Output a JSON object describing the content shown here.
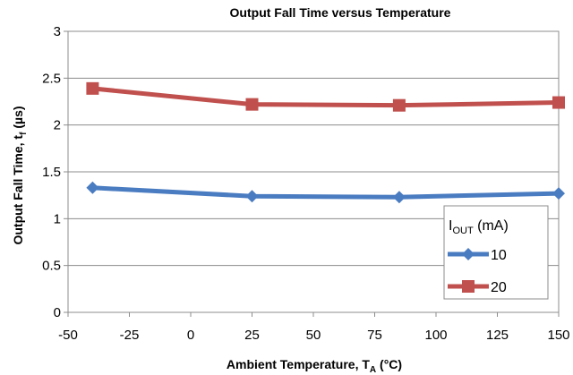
{
  "chart_data": {
    "type": "line",
    "title": "Output Fall Time versus Temperature",
    "xlabel": {
      "main": "Ambient Temperature, T",
      "sub": "A",
      "tail": " (°C)"
    },
    "ylabel": {
      "main": "Output Fall Time, t",
      "sub": "f",
      "tail": " (µs)"
    },
    "xlim": [
      -50,
      150
    ],
    "ylim": [
      0,
      3
    ],
    "xticks": [
      -50,
      -25,
      0,
      25,
      50,
      75,
      100,
      125,
      150
    ],
    "xtick_labels": [
      "-50",
      "-25",
      "0",
      "25",
      "50",
      "75",
      "100",
      "125",
      "150"
    ],
    "yticks": [
      0,
      0.5,
      1,
      1.5,
      2,
      2.5,
      3
    ],
    "ytick_labels": [
      "0",
      "0.5",
      "1",
      "1.5",
      "2",
      "2.5",
      "3"
    ],
    "grid": true,
    "legend": {
      "placement": "bottom-right",
      "title_main": "I",
      "title_sub": "OUT",
      "title_tail": " (mA)"
    },
    "series": [
      {
        "name": "10",
        "color": "#4a7cc1",
        "marker": "diamond",
        "x": [
          -40,
          25,
          85,
          150
        ],
        "y": [
          1.33,
          1.24,
          1.23,
          1.27
        ]
      },
      {
        "name": "20",
        "color": "#c0504d",
        "marker": "square",
        "x": [
          -40,
          25,
          85,
          150
        ],
        "y": [
          2.39,
          2.22,
          2.21,
          2.24
        ]
      }
    ]
  }
}
